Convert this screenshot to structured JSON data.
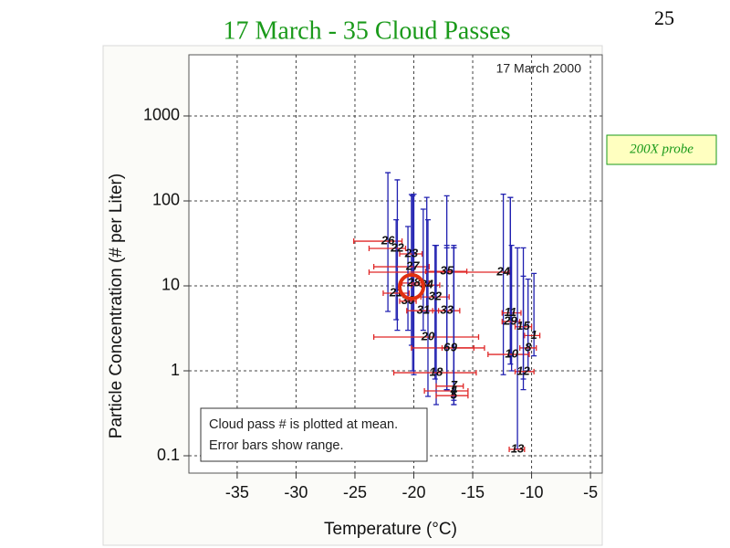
{
  "slide": {
    "title": "17 March - 35 Cloud Passes",
    "page_number": "25",
    "probe_label": "200X probe"
  },
  "chart_data": {
    "type": "scatter",
    "log_y": true,
    "grid": true,
    "xlabel": "Temperature (°C)",
    "ylabel": "Particle Concentration (# per Liter)",
    "plot_label": "17 March 2000",
    "annotations": [
      "Cloud pass # is plotted at mean.",
      "Error bars show range."
    ],
    "xlim": [
      -39.1,
      -4
    ],
    "ylim": [
      0.0625,
      5250
    ],
    "xticks": [
      -35,
      -30,
      -25,
      -20,
      -15,
      -10,
      -5
    ],
    "yticks": [
      0.1,
      1,
      10,
      100,
      1000
    ],
    "series": [
      {
        "x_color": "#e02828",
        "y_color": "#2020b0",
        "labels": [
          "26",
          "22",
          "23",
          "27",
          "28",
          "21",
          "34",
          "35",
          "24",
          "32",
          "30",
          "31",
          "33",
          "20",
          "6",
          "9",
          "18",
          "7",
          "4",
          "5",
          "11",
          "29",
          "15",
          "1",
          "8",
          "10",
          "12",
          "13"
        ],
        "x": [
          -22.2,
          -21.4,
          -20.2,
          -20.1,
          -20.0,
          -21.5,
          -18.9,
          -17.2,
          -12.4,
          -18.2,
          -20.5,
          -19.2,
          -17.2,
          -18.8,
          -17.2,
          -16.6,
          -18.1,
          -16.6,
          -16.6,
          -16.6,
          -11.8,
          -11.8,
          -10.7,
          -9.8,
          -10.3,
          -11.7,
          -10.7,
          -11.2
        ],
        "values": [
          33.6,
          27.6,
          23.8,
          16.8,
          10.8,
          8.2,
          10.2,
          14.8,
          14.5,
          7.4,
          6.6,
          5.1,
          5.1,
          2.5,
          1.86,
          1.86,
          0.95,
          0.66,
          0.58,
          0.51,
          4.8,
          3.8,
          3.3,
          2.6,
          1.86,
          1.56,
          0.98,
          0.119
        ],
        "x_min": [
          -25.1,
          -23.8,
          -21.2,
          -23.4,
          -21.0,
          -22.6,
          -20.2,
          -19.0,
          -23.8,
          -19.4,
          -21.2,
          -20.6,
          -18.4,
          -23.4,
          -20.2,
          -17.6,
          -21.7,
          -18.1,
          -19.1,
          -18.1,
          -12.5,
          -12.5,
          -11.4,
          -10.6,
          -11.0,
          -13.7,
          -11.4,
          -11.9
        ],
        "x_max": [
          -21.0,
          -20.7,
          -19.3,
          -18.7,
          -18.7,
          -20.4,
          -17.8,
          -15.5,
          -11.9,
          -17.0,
          -19.8,
          -17.9,
          -16.1,
          -14.5,
          -14.0,
          -14.9,
          -14.7,
          -15.8,
          -15.4,
          -15.4,
          -10.9,
          -11.0,
          -10.0,
          -9.3,
          -9.6,
          -10.2,
          -9.8,
          -10.6
        ],
        "y_min": [
          5,
          3,
          2,
          1,
          0.9,
          4,
          5,
          0.6,
          0.9,
          0.8,
          3,
          3,
          0.6,
          0.5,
          0.6,
          0.4,
          0.4,
          0.5,
          0.45,
          0.4,
          1.5,
          1.2,
          0.8,
          1.5,
          1.0,
          1.0,
          0.6,
          0.12
        ],
        "y_max": [
          215,
          177,
          119,
          115,
          120,
          60,
          110,
          115,
          120,
          30,
          50,
          80,
          28,
          60,
          30,
          30,
          30,
          28,
          28,
          28,
          110,
          110,
          28,
          14,
          12,
          30,
          13,
          28
        ]
      }
    ]
  }
}
